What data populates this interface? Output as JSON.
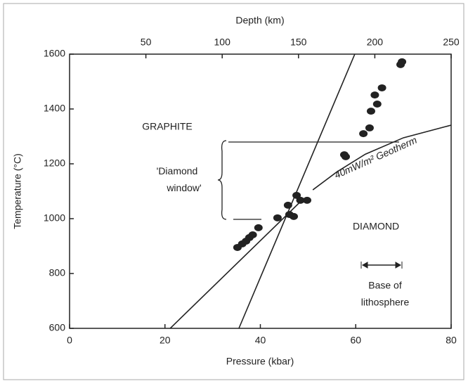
{
  "chart_data": {
    "type": "scatter",
    "xlabel": "Pressure (kbar)",
    "ylabel": "Temperature (°C)",
    "x2label": "Depth (km)",
    "xlim": [
      0,
      80
    ],
    "xticks": [
      0,
      20,
      40,
      60,
      80
    ],
    "ylim": [
      600,
      1600
    ],
    "yticks": [
      600,
      800,
      1000,
      1200,
      1400,
      1600
    ],
    "x2lim": [
      0,
      250
    ],
    "x2ticks": [
      50,
      100,
      150,
      200,
      250
    ],
    "points": {
      "color": "#222",
      "x": [
        35.2,
        36.2,
        37,
        37.7,
        38.4,
        39.6,
        43.6,
        45.8,
        46.1,
        47,
        47.6,
        48.4,
        49.8,
        57.6,
        57.9,
        61.6,
        62.9,
        63.2,
        64,
        64.5,
        65.5,
        69.4,
        69.7
      ],
      "y": [
        895,
        908,
        918,
        931,
        941,
        967,
        1003,
        1049,
        1015,
        1008,
        1085,
        1067,
        1067,
        1233,
        1226,
        1310,
        1331,
        1392,
        1451,
        1418,
        1477,
        1562,
        1572
      ]
    },
    "series": [
      {
        "color": "#222",
        "x": [
          21.1,
          48.7
        ],
        "y": [
          600,
          1067
        ]
      },
      {
        "color": "#222",
        "x": [
          35.5,
          59.8
        ],
        "y": [
          600,
          1600
        ]
      },
      {
        "name": "40mW/m² Geotherm",
        "color": "#222",
        "x": [
          51,
          56,
          62,
          70,
          80
        ],
        "y": [
          1105,
          1170,
          1235,
          1295,
          1341
        ]
      }
    ],
    "annotations": [
      "GRAPHITE",
      "DIAMOND",
      "'Diamond window'",
      "Base of",
      "lithosphere"
    ]
  }
}
